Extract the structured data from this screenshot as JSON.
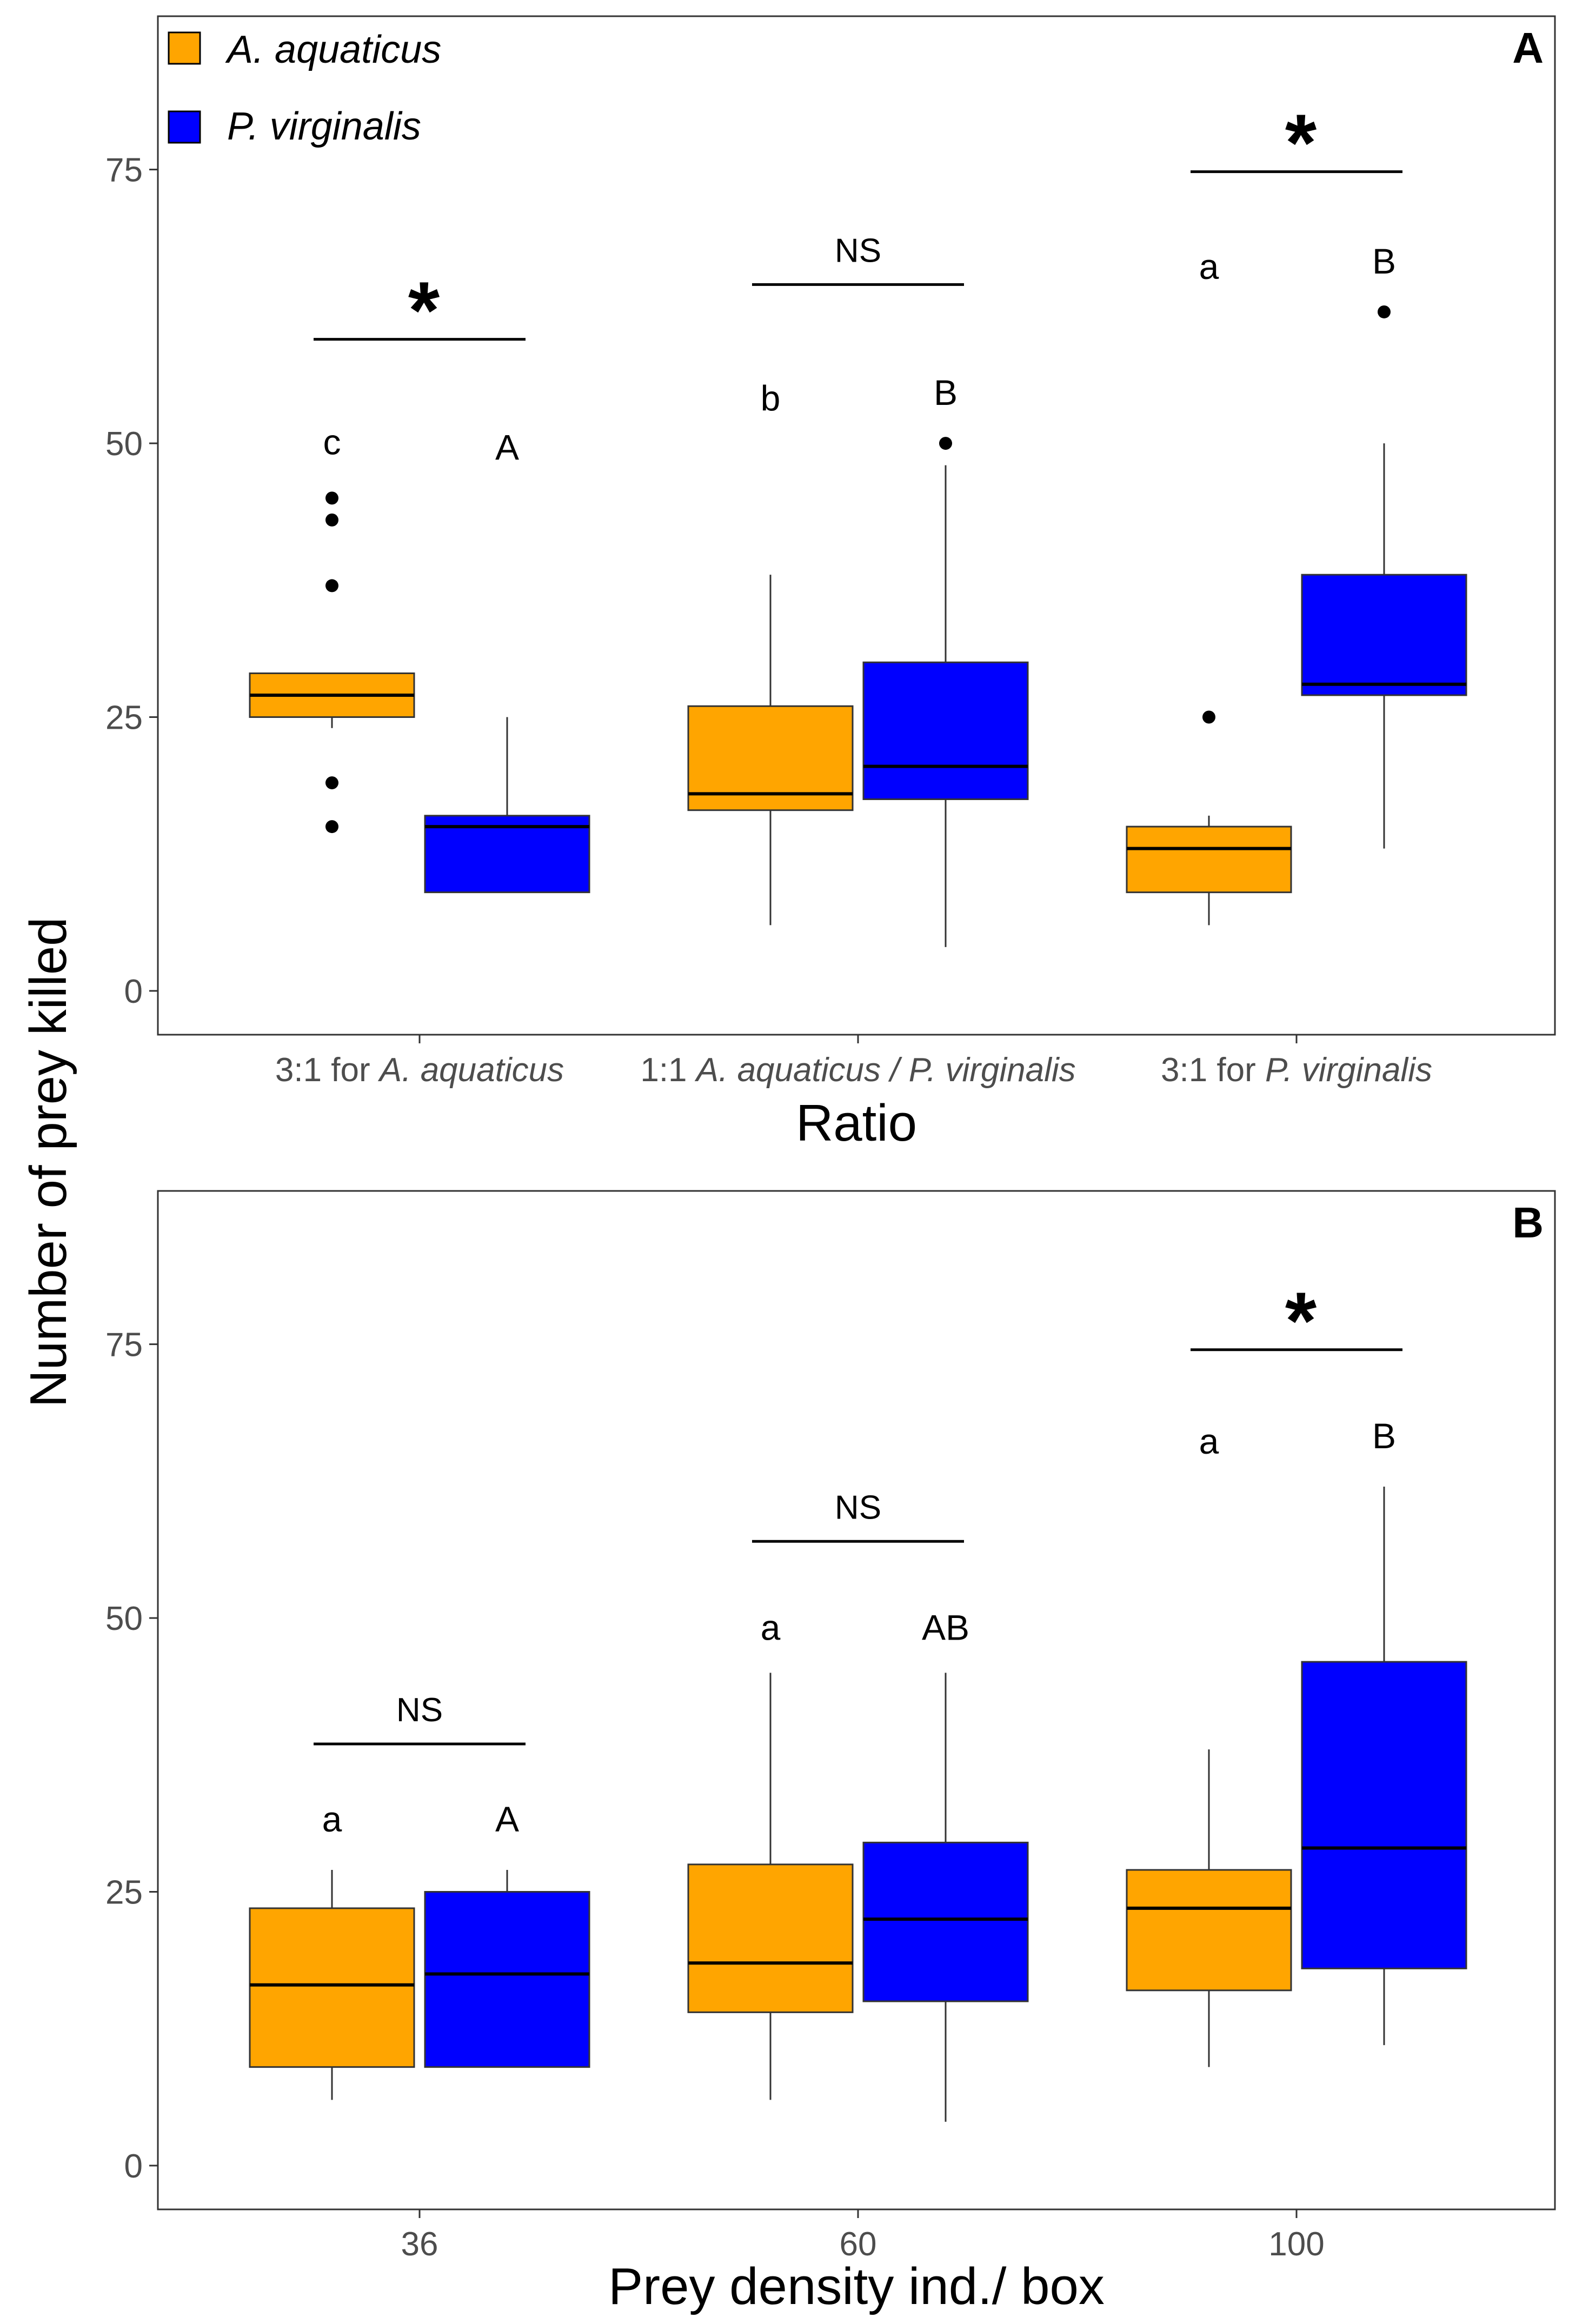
{
  "legend": [
    {
      "label": "A. aquaticus",
      "color": "#FFA500"
    },
    {
      "label": "P. virginalis",
      "color": "#0000FF"
    }
  ],
  "shared_ylabel": "Number of prey killed",
  "chart_data": [
    {
      "type": "box",
      "panel": "A",
      "xlabel": "Ratio",
      "ylabel": "Number of prey killed",
      "ylim": [
        -4,
        89
      ],
      "yticks": [
        0,
        25,
        50,
        75
      ],
      "categories": [
        {
          "pre": "3:1 for ",
          "italic": "A. aquaticus",
          "post": ""
        },
        {
          "pre": "1:1 ",
          "italic": "A. aquaticus / P. virginalis",
          "post": ""
        },
        {
          "pre": "3:1 for ",
          "italic": "P. virginalis",
          "post": ""
        }
      ],
      "series": [
        {
          "name": "A. aquaticus",
          "color": "#FFA500",
          "boxes": [
            {
              "min": 24,
              "q1": 25,
              "median": 27,
              "q3": 29,
              "max": 29,
              "outliers": [
                45,
                43,
                37,
                19,
                15
              ],
              "letter": "c",
              "letter_y": 49
            },
            {
              "min": 6,
              "q1": 16.5,
              "median": 18,
              "q3": 26,
              "max": 38,
              "outliers": [],
              "letter": "b",
              "letter_y": 53
            },
            {
              "min": 6,
              "q1": 9,
              "median": 13,
              "q3": 15,
              "max": 16,
              "outliers": [
                25
              ],
              "letter": "a",
              "letter_y": 65
            }
          ]
        },
        {
          "name": "P. virginalis",
          "color": "#0000FF",
          "boxes": [
            {
              "min": 9,
              "q1": 9,
              "median": 15,
              "q3": 16,
              "max": 25,
              "outliers": [],
              "letter": "A",
              "letter_y": 48.5
            },
            {
              "min": 4,
              "q1": 17.5,
              "median": 20.5,
              "q3": 30,
              "max": 48,
              "outliers": [
                50
              ],
              "letter": "B",
              "letter_y": 53.5
            },
            {
              "min": 13,
              "q1": 27,
              "median": 28,
              "q3": 38,
              "max": 50,
              "outliers": [
                62
              ],
              "letter": "B",
              "letter_y": 65.5
            }
          ]
        }
      ],
      "significance": [
        {
          "label": "*",
          "y": 59.5,
          "star": true
        },
        {
          "label": "NS",
          "y": 64.5,
          "star": false
        },
        {
          "label": "*",
          "y": 74.8,
          "star": true
        }
      ]
    },
    {
      "type": "box",
      "panel": "B",
      "xlabel": "Prey density ind./ box",
      "ylabel": "Number of prey killed",
      "ylim": [
        -4,
        89
      ],
      "yticks": [
        0,
        25,
        50,
        75
      ],
      "categories": [
        {
          "pre": "36",
          "italic": "",
          "post": ""
        },
        {
          "pre": "60",
          "italic": "",
          "post": ""
        },
        {
          "pre": "100",
          "italic": "",
          "post": ""
        }
      ],
      "series": [
        {
          "name": "A. aquaticus",
          "color": "#FFA500",
          "boxes": [
            {
              "min": 6,
              "q1": 9,
              "median": 16.5,
              "q3": 23.5,
              "max": 27,
              "outliers": [],
              "letter": "a",
              "letter_y": 30.5
            },
            {
              "min": 6,
              "q1": 14,
              "median": 18.5,
              "q3": 27.5,
              "max": 45,
              "outliers": [],
              "letter": "a",
              "letter_y": 48
            },
            {
              "min": 9,
              "q1": 16,
              "median": 23.5,
              "q3": 27,
              "max": 38,
              "outliers": [],
              "letter": "a",
              "letter_y": 65
            }
          ]
        },
        {
          "name": "P. virginalis",
          "color": "#0000FF",
          "boxes": [
            {
              "min": 9,
              "q1": 9,
              "median": 17.5,
              "q3": 25,
              "max": 27,
              "outliers": [],
              "letter": "A",
              "letter_y": 30.5
            },
            {
              "min": 4,
              "q1": 15,
              "median": 22.5,
              "q3": 29.5,
              "max": 45,
              "outliers": [],
              "letter": "AB",
              "letter_y": 48
            },
            {
              "min": 11,
              "q1": 18,
              "median": 29,
              "q3": 46,
              "max": 62,
              "outliers": [],
              "letter": "B",
              "letter_y": 65.5
            }
          ]
        }
      ],
      "significance": [
        {
          "label": "NS",
          "y": 38.5,
          "star": false
        },
        {
          "label": "NS",
          "y": 57,
          "star": false
        },
        {
          "label": "*",
          "y": 74.5,
          "star": true
        }
      ]
    }
  ]
}
